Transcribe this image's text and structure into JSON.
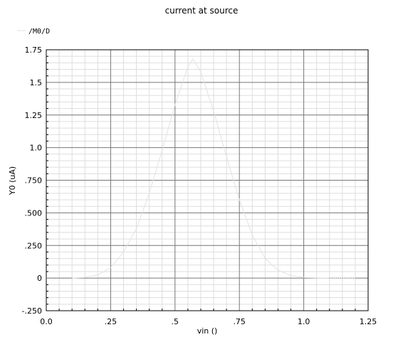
{
  "chart_data": {
    "type": "line",
    "title": "current at source",
    "xlabel": "vin ()",
    "ylabel": "Y0 (uA)",
    "xlim": [
      0.0,
      1.25
    ],
    "ylim": [
      -0.25,
      1.75
    ],
    "x_ticks": [
      0.0,
      0.25,
      0.5,
      0.75,
      1.0,
      1.25
    ],
    "x_tick_labels": [
      "0.0",
      ".25",
      ".5",
      ".75",
      "1.0",
      "1.25"
    ],
    "y_ticks": [
      -0.25,
      0,
      0.25,
      0.5,
      0.75,
      1.0,
      1.25,
      1.5,
      1.75
    ],
    "y_tick_labels": [
      "-.250",
      "0",
      ".250",
      ".500",
      ".750",
      "1.0",
      "1.25",
      "1.5",
      "1.75"
    ],
    "grid": true,
    "legend_position": "top-left",
    "series": [
      {
        "name": "/M0/D",
        "color": "#e2e2e2",
        "x": [
          0.0,
          0.1,
          0.15,
          0.2,
          0.25,
          0.3,
          0.35,
          0.4,
          0.45,
          0.5,
          0.55,
          0.57,
          0.6,
          0.65,
          0.7,
          0.75,
          0.8,
          0.85,
          0.9,
          0.95,
          1.0,
          1.05,
          1.1,
          1.2
        ],
        "y": [
          0.0,
          0.0,
          0.005,
          0.025,
          0.08,
          0.2,
          0.38,
          0.65,
          0.98,
          1.33,
          1.62,
          1.68,
          1.58,
          1.28,
          0.93,
          0.6,
          0.33,
          0.15,
          0.06,
          0.02,
          0.005,
          0.001,
          0.0,
          0.0
        ]
      }
    ]
  }
}
